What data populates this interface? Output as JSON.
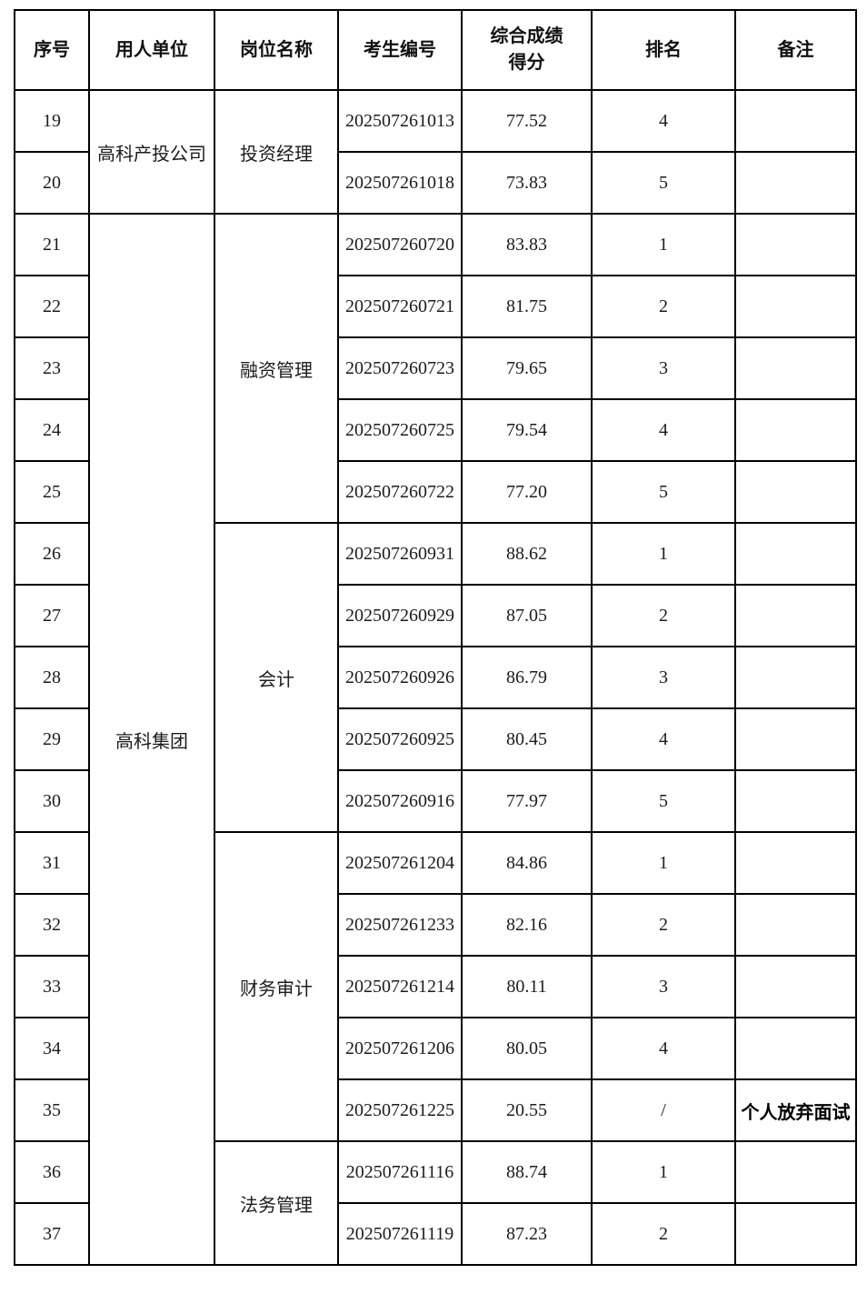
{
  "page": {
    "background_color": "#ffffff",
    "border_color": "#000000",
    "text_color": "#1c1c1c"
  },
  "table": {
    "header": {
      "no": "序号",
      "employer": "用人单位",
      "position": "岗位名称",
      "candidate_id": "考生编号",
      "score_line1": "综合成绩",
      "score_line2": "得分",
      "rank": "排名",
      "remark": "备注"
    },
    "employer_groups": [
      {
        "label": "高科产投公司",
        "start_no": "19",
        "rowspan": 2
      },
      {
        "label": "高科集团",
        "start_no": "21",
        "rowspan": 17
      }
    ],
    "position_groups": [
      {
        "label": "投资经理",
        "start_no": "19",
        "rowspan": 2
      },
      {
        "label": "融资管理",
        "start_no": "21",
        "rowspan": 5
      },
      {
        "label": "会计",
        "start_no": "26",
        "rowspan": 5
      },
      {
        "label": "财务审计",
        "start_no": "31",
        "rowspan": 5
      },
      {
        "label": "法务管理",
        "start_no": "36",
        "rowspan": 2
      }
    ],
    "rows": [
      {
        "no": "19",
        "candidate_id": "202507261013",
        "score": "77.52",
        "rank": "4",
        "remark": ""
      },
      {
        "no": "20",
        "candidate_id": "202507261018",
        "score": "73.83",
        "rank": "5",
        "remark": ""
      },
      {
        "no": "21",
        "candidate_id": "202507260720",
        "score": "83.83",
        "rank": "1",
        "remark": ""
      },
      {
        "no": "22",
        "candidate_id": "202507260721",
        "score": "81.75",
        "rank": "2",
        "remark": ""
      },
      {
        "no": "23",
        "candidate_id": "202507260723",
        "score": "79.65",
        "rank": "3",
        "remark": ""
      },
      {
        "no": "24",
        "candidate_id": "202507260725",
        "score": "79.54",
        "rank": "4",
        "remark": ""
      },
      {
        "no": "25",
        "candidate_id": "202507260722",
        "score": "77.20",
        "rank": "5",
        "remark": ""
      },
      {
        "no": "26",
        "candidate_id": "202507260931",
        "score": "88.62",
        "rank": "1",
        "remark": ""
      },
      {
        "no": "27",
        "candidate_id": "202507260929",
        "score": "87.05",
        "rank": "2",
        "remark": ""
      },
      {
        "no": "28",
        "candidate_id": "202507260926",
        "score": "86.79",
        "rank": "3",
        "remark": ""
      },
      {
        "no": "29",
        "candidate_id": "202507260925",
        "score": "80.45",
        "rank": "4",
        "remark": ""
      },
      {
        "no": "30",
        "candidate_id": "202507260916",
        "score": "77.97",
        "rank": "5",
        "remark": ""
      },
      {
        "no": "31",
        "candidate_id": "202507261204",
        "score": "84.86",
        "rank": "1",
        "remark": ""
      },
      {
        "no": "32",
        "candidate_id": "202507261233",
        "score": "82.16",
        "rank": "2",
        "remark": ""
      },
      {
        "no": "33",
        "candidate_id": "202507261214",
        "score": "80.11",
        "rank": "3",
        "remark": ""
      },
      {
        "no": "34",
        "candidate_id": "202507261206",
        "score": "80.05",
        "rank": "4",
        "remark": ""
      },
      {
        "no": "35",
        "candidate_id": "202507261225",
        "score": "20.55",
        "rank": "/",
        "remark": "个人放弃面试"
      },
      {
        "no": "36",
        "candidate_id": "202507261116",
        "score": "88.74",
        "rank": "1",
        "remark": ""
      },
      {
        "no": "37",
        "candidate_id": "202507261119",
        "score": "87.23",
        "rank": "2",
        "remark": ""
      }
    ]
  }
}
